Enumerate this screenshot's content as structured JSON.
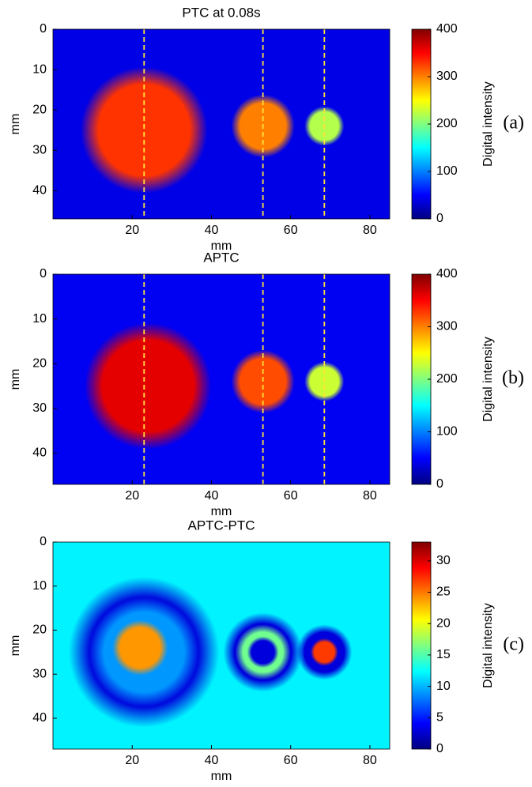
{
  "chart_data": [
    {
      "type": "heatmap",
      "panel_label": "(a)",
      "title": "PTC at 0.08s",
      "xlabel": "mm",
      "ylabel": "mm",
      "colorbar_label": "Digital intensity",
      "xlim": [
        0,
        85
      ],
      "ylim": [
        0,
        47
      ],
      "y_reversed": true,
      "xticks": [
        20,
        40,
        60,
        80
      ],
      "yticks": [
        0,
        10,
        20,
        30,
        40
      ],
      "clim": [
        0,
        400
      ],
      "cticks": [
        0,
        100,
        200,
        300,
        400
      ],
      "colormap": "jet",
      "background_value": 40,
      "spots": [
        {
          "x": 23,
          "y": 25,
          "radius": 16,
          "value": 330
        },
        {
          "x": 53,
          "y": 24,
          "radius": 8,
          "value": 300
        },
        {
          "x": 68.5,
          "y": 24,
          "radius": 5,
          "value": 220
        }
      ],
      "guide_lines_x": [
        23,
        53,
        68.5
      ],
      "guide_color": "#ffe23a"
    },
    {
      "type": "heatmap",
      "panel_label": "(b)",
      "title": "APTC",
      "xlabel": "mm",
      "ylabel": "mm",
      "colorbar_label": "Digital intensity",
      "xlim": [
        0,
        85
      ],
      "ylim": [
        0,
        47
      ],
      "y_reversed": true,
      "xticks": [
        20,
        40,
        60,
        80
      ],
      "yticks": [
        0,
        10,
        20,
        30,
        40
      ],
      "clim": [
        0,
        400
      ],
      "cticks": [
        0,
        100,
        200,
        300,
        400
      ],
      "colormap": "jet",
      "background_value": 45,
      "spots": [
        {
          "x": 24,
          "y": 25,
          "radius": 16,
          "value": 360
        },
        {
          "x": 53,
          "y": 24,
          "radius": 8,
          "value": 320
        },
        {
          "x": 68.5,
          "y": 24,
          "radius": 5,
          "value": 230
        }
      ],
      "guide_lines_x": [
        23,
        53,
        68.5
      ],
      "guide_color": "#ffe23a"
    },
    {
      "type": "heatmap",
      "panel_label": "(c)",
      "title": "APTC-PTC",
      "xlabel": "mm",
      "ylabel": "mm",
      "colorbar_label": "Digital intensity",
      "xlim": [
        0,
        85
      ],
      "ylim": [
        0,
        47
      ],
      "y_reversed": true,
      "xticks": [
        20,
        40,
        60,
        80
      ],
      "yticks": [
        0,
        10,
        20,
        30,
        40
      ],
      "clim": [
        0,
        33
      ],
      "cticks": [
        0,
        5,
        10,
        15,
        20,
        25,
        30
      ],
      "colormap": "jet",
      "background_value": 12,
      "spots": [
        {
          "x": 23,
          "y": 25,
          "radius": 19,
          "value": 3
        },
        {
          "x": 23,
          "y": 25,
          "radius": 14,
          "value": 9
        },
        {
          "x": 22,
          "y": 24,
          "radius": 7,
          "value": 24
        },
        {
          "x": 53,
          "y": 25,
          "radius": 10,
          "value": 3
        },
        {
          "x": 53,
          "y": 25,
          "radius": 7,
          "value": 16
        },
        {
          "x": 53,
          "y": 25,
          "radius": 4,
          "value": 3
        },
        {
          "x": 68.5,
          "y": 25,
          "radius": 7,
          "value": 3
        },
        {
          "x": 68.5,
          "y": 25,
          "radius": 3.5,
          "value": 27
        }
      ]
    }
  ]
}
